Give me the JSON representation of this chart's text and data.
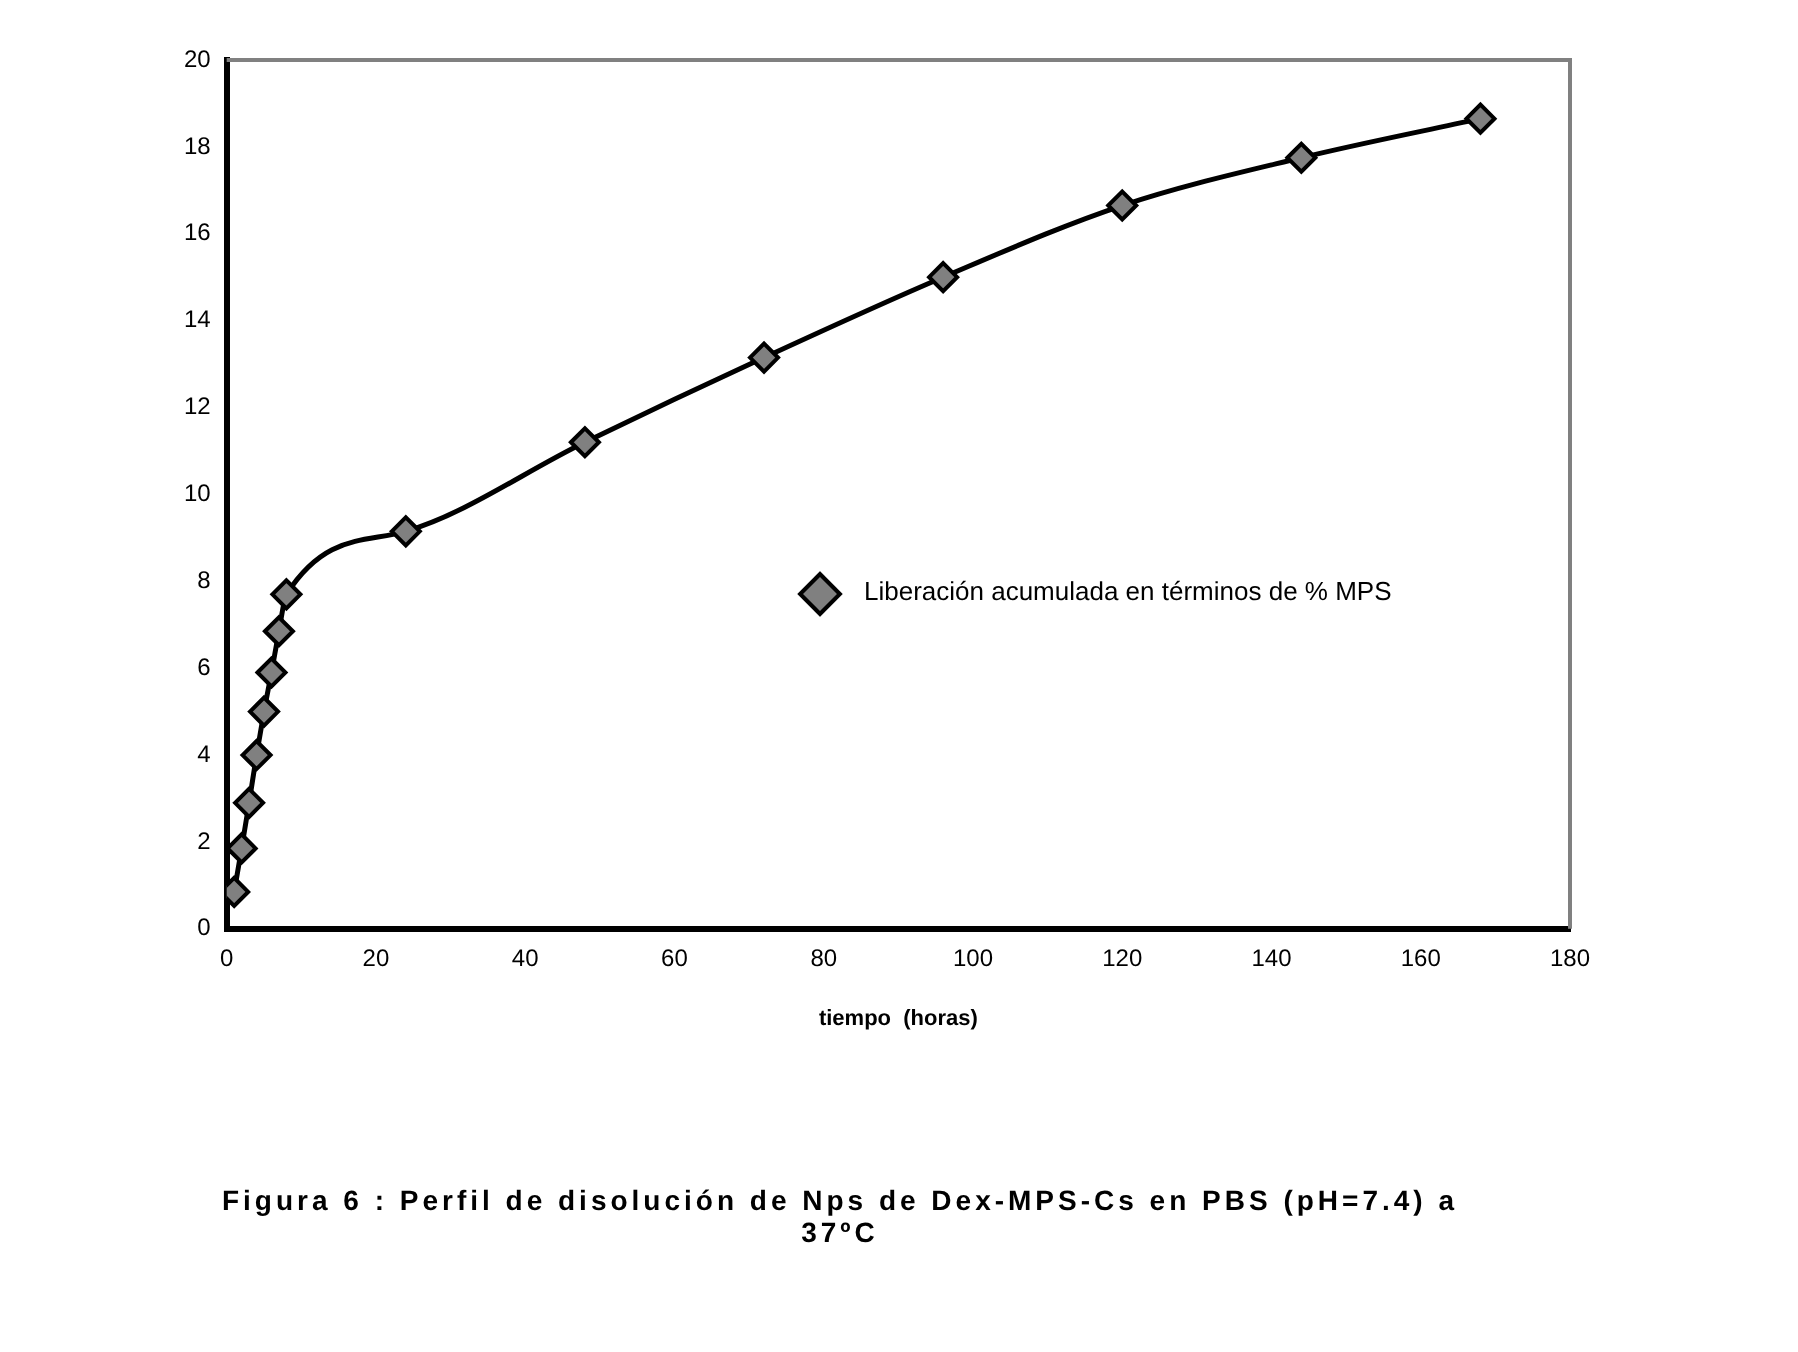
{
  "chart_data": {
    "type": "line",
    "title": "Figura 6 : Perfil de disolución de Nps de Dex-MPS-Cs en PBS (pH=7.4) a 37ºC",
    "xlabel": "tiempo  (horas)",
    "x": [
      1,
      2,
      3,
      4,
      5,
      6,
      7,
      8,
      24,
      48,
      72,
      96,
      120,
      144,
      168
    ],
    "series": [
      {
        "name": "Liberación acumulada en términos de % MPS",
        "color": "#808080",
        "values": [
          0.85,
          1.85,
          2.9,
          4.0,
          5.0,
          5.9,
          6.85,
          7.7,
          9.15,
          11.2,
          13.15,
          15.0,
          16.65,
          17.75,
          18.65
        ]
      }
    ],
    "xlim": [
      0,
      180
    ],
    "xticks": [
      0,
      20,
      40,
      60,
      80,
      100,
      120,
      140,
      160,
      180
    ],
    "ylim": [
      0,
      20
    ],
    "yticks": [
      0,
      2,
      4,
      6,
      8,
      10,
      12,
      14,
      16,
      18,
      20
    ],
    "grid": false,
    "legend": "right",
    "marker": "diamond",
    "line_style": "solid"
  }
}
